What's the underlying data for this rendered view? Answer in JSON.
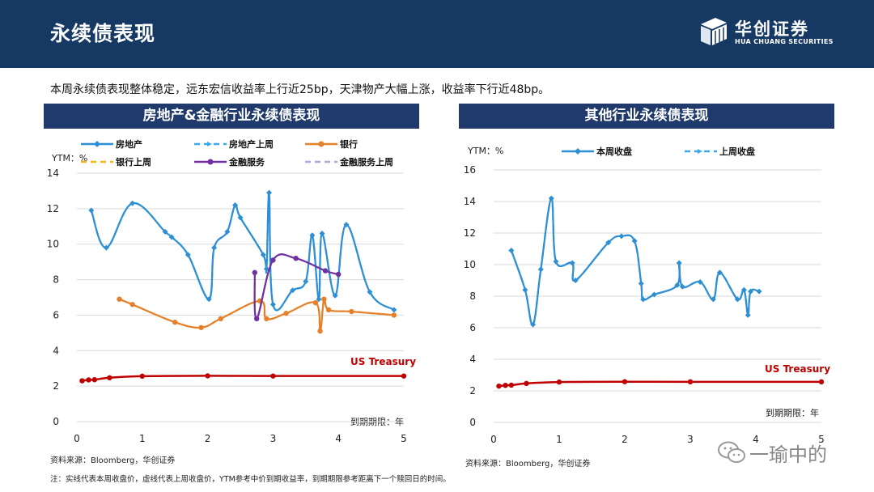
{
  "header": {
    "title": "永续债表现",
    "logo_cn": "华创证券",
    "logo_en": "HUA CHUANG SECURITIES"
  },
  "summary": "本周永续债表现整体稳定，远东宏信收益率上行近25bp，天津物产大幅上涨，收益率下行近48bp。",
  "colors": {
    "header": "#163963",
    "panel": "#1f3a6b",
    "current": "#2e8fd4",
    "last": "#3aa9e8",
    "bank": "#e6802a",
    "bank_last": "#f2b81b",
    "fin": "#7030a0",
    "fin_last": "#b9a3d6",
    "treasury": "#c00000"
  },
  "footer": {
    "source_left": "资料来源：Bloomberg，华创证券",
    "source_right": "资料来源：Bloomberg，华创证券",
    "note": "注：实线代表本周收盘价，虚线代表上周收盘价，YTM参考中价到期收益率，到期期限参考距离下一个赎回日的时间。"
  },
  "watermark": "一瑜中的",
  "chart_data": [
    {
      "type": "line",
      "title": "房地产&金融行业永续债表现",
      "ylabel": "YTM：%",
      "xlabel": "到期期限：年",
      "xlim": [
        0,
        5
      ],
      "ylim": [
        0,
        14
      ],
      "xticks": [
        0,
        1,
        2,
        3,
        4,
        5
      ],
      "yticks": [
        0,
        2,
        4,
        6,
        8,
        10,
        12,
        14
      ],
      "legend": [
        "房地产",
        "房地产上周",
        "银行",
        "银行上周",
        "金融服务",
        "金融服务上周"
      ],
      "series": [
        {
          "name": "房地产",
          "style": "current",
          "color": "#2e8fd4",
          "points": [
            [
              0.22,
              11.9
            ],
            [
              0.45,
              9.8
            ],
            [
              0.85,
              12.3
            ],
            [
              1.35,
              10.7
            ],
            [
              1.45,
              10.4
            ],
            [
              1.7,
              9.4
            ],
            [
              2.02,
              6.9
            ],
            [
              2.1,
              9.8
            ],
            [
              2.3,
              10.7
            ],
            [
              2.42,
              12.2
            ],
            [
              2.5,
              11.5
            ],
            [
              2.85,
              9.4
            ],
            [
              2.9,
              8.6
            ],
            [
              2.94,
              12.9
            ],
            [
              3.0,
              6.6
            ],
            [
              3.3,
              7.4
            ],
            [
              3.5,
              7.9
            ],
            [
              3.6,
              10.5
            ],
            [
              3.7,
              6.9
            ],
            [
              3.75,
              10.6
            ],
            [
              3.95,
              7.1
            ],
            [
              4.12,
              11.1
            ],
            [
              4.48,
              7.3
            ],
            [
              4.85,
              6.3
            ]
          ]
        },
        {
          "name": "房地产上周",
          "style": "last",
          "color": "#3aa9e8",
          "points": [
            [
              0.22,
              11.9
            ],
            [
              0.45,
              9.8
            ],
            [
              0.85,
              12.3
            ],
            [
              1.35,
              10.7
            ],
            [
              1.45,
              10.4
            ],
            [
              1.7,
              9.4
            ],
            [
              2.02,
              6.9
            ],
            [
              2.1,
              9.8
            ],
            [
              2.3,
              10.7
            ],
            [
              2.42,
              12.2
            ],
            [
              2.5,
              11.5
            ],
            [
              2.85,
              9.4
            ],
            [
              2.9,
              8.6
            ],
            [
              2.94,
              12.9
            ],
            [
              3.0,
              6.6
            ],
            [
              3.3,
              7.4
            ],
            [
              3.5,
              7.9
            ],
            [
              3.6,
              10.5
            ],
            [
              3.7,
              6.9
            ],
            [
              3.75,
              10.6
            ],
            [
              3.95,
              7.1
            ],
            [
              4.12,
              11.1
            ],
            [
              4.48,
              7.3
            ],
            [
              4.85,
              6.3
            ]
          ]
        },
        {
          "name": "银行",
          "style": "current",
          "color": "#e6802a",
          "points": [
            [
              0.65,
              6.9
            ],
            [
              0.85,
              6.6
            ],
            [
              1.5,
              5.6
            ],
            [
              1.9,
              5.3
            ],
            [
              2.2,
              5.8
            ],
            [
              2.8,
              6.8
            ],
            [
              2.9,
              5.8
            ],
            [
              3.2,
              6.1
            ],
            [
              3.65,
              6.7
            ],
            [
              3.72,
              5.1
            ],
            [
              3.78,
              6.9
            ],
            [
              3.85,
              6.3
            ],
            [
              4.2,
              6.2
            ],
            [
              4.85,
              6.0
            ]
          ]
        },
        {
          "name": "银行上周",
          "style": "last",
          "color": "#f2b81b",
          "points": [
            [
              0.65,
              6.9
            ],
            [
              0.85,
              6.6
            ],
            [
              1.5,
              5.6
            ],
            [
              1.9,
              5.3
            ],
            [
              2.2,
              5.8
            ],
            [
              2.8,
              6.8
            ],
            [
              2.9,
              5.8
            ],
            [
              3.2,
              6.1
            ],
            [
              3.65,
              6.7
            ],
            [
              3.72,
              5.1
            ],
            [
              3.78,
              6.9
            ],
            [
              3.85,
              6.3
            ],
            [
              4.2,
              6.2
            ],
            [
              4.85,
              6.0
            ]
          ]
        },
        {
          "name": "金融服务",
          "style": "current",
          "color": "#7030a0",
          "points": [
            [
              2.72,
              8.4
            ],
            [
              2.75,
              5.8
            ],
            [
              3.0,
              9.1
            ],
            [
              3.35,
              9.2
            ],
            [
              3.8,
              8.5
            ],
            [
              4.0,
              8.3
            ]
          ]
        },
        {
          "name": "金融服务上周",
          "style": "last",
          "color": "#b9a3d6",
          "points": [
            [
              2.72,
              8.4
            ],
            [
              2.75,
              5.8
            ],
            [
              3.0,
              9.1
            ],
            [
              3.35,
              9.2
            ],
            [
              3.8,
              8.5
            ],
            [
              4.0,
              8.3
            ]
          ]
        },
        {
          "name": "US Treasury",
          "style": "treasury",
          "color": "#c00000",
          "points": [
            [
              0.08,
              2.3
            ],
            [
              0.18,
              2.35
            ],
            [
              0.27,
              2.36
            ],
            [
              0.5,
              2.47
            ],
            [
              1.0,
              2.56
            ],
            [
              2.0,
              2.58
            ],
            [
              3.0,
              2.57
            ],
            [
              5.0,
              2.57
            ]
          ]
        }
      ],
      "annotation": "US Treasury"
    },
    {
      "type": "line",
      "title": "其他行业永续债表现",
      "ylabel": "YTM：%",
      "xlabel": "到期期限：年",
      "xlim": [
        0,
        5
      ],
      "ylim": [
        0,
        16
      ],
      "xticks": [
        0,
        1,
        2,
        3,
        4,
        5
      ],
      "yticks": [
        0,
        2,
        4,
        6,
        8,
        10,
        12,
        14,
        16
      ],
      "legend": [
        "本周收盘",
        "上周收盘"
      ],
      "series": [
        {
          "name": "本周收盘",
          "style": "current",
          "color": "#2e8fd4",
          "points": [
            [
              0.27,
              10.9
            ],
            [
              0.48,
              8.4
            ],
            [
              0.6,
              6.2
            ],
            [
              0.72,
              9.7
            ],
            [
              0.88,
              14.2
            ],
            [
              0.95,
              10.2
            ],
            [
              1.2,
              10.1
            ],
            [
              1.25,
              9.0
            ],
            [
              1.75,
              11.4
            ],
            [
              1.95,
              11.8
            ],
            [
              2.15,
              11.5
            ],
            [
              2.25,
              8.8
            ],
            [
              2.28,
              7.8
            ],
            [
              2.45,
              8.1
            ],
            [
              2.8,
              8.7
            ],
            [
              2.83,
              10.1
            ],
            [
              2.88,
              8.6
            ],
            [
              3.15,
              8.9
            ],
            [
              3.35,
              7.8
            ],
            [
              3.45,
              9.5
            ],
            [
              3.72,
              7.8
            ],
            [
              3.82,
              8.4
            ],
            [
              3.88,
              6.8
            ],
            [
              3.92,
              8.3
            ],
            [
              4.05,
              8.3
            ]
          ]
        },
        {
          "name": "上周收盘",
          "style": "last",
          "color": "#3aa9e8",
          "points": [
            [
              0.27,
              10.9
            ],
            [
              0.48,
              8.4
            ],
            [
              0.6,
              6.2
            ],
            [
              0.72,
              9.7
            ],
            [
              0.88,
              14.2
            ],
            [
              0.95,
              10.2
            ],
            [
              1.2,
              10.1
            ],
            [
              1.25,
              9.0
            ],
            [
              1.75,
              11.4
            ],
            [
              1.95,
              11.8
            ],
            [
              2.15,
              11.5
            ],
            [
              2.25,
              8.8
            ],
            [
              2.28,
              7.8
            ],
            [
              2.45,
              8.1
            ],
            [
              2.8,
              8.7
            ],
            [
              2.83,
              10.1
            ],
            [
              2.88,
              8.6
            ],
            [
              3.15,
              8.9
            ],
            [
              3.35,
              7.8
            ],
            [
              3.45,
              9.5
            ],
            [
              3.72,
              7.8
            ],
            [
              3.82,
              8.4
            ],
            [
              3.88,
              6.8
            ],
            [
              3.92,
              8.3
            ],
            [
              4.05,
              8.3
            ]
          ]
        },
        {
          "name": "US Treasury",
          "style": "treasury",
          "color": "#c00000",
          "points": [
            [
              0.08,
              2.3
            ],
            [
              0.18,
              2.35
            ],
            [
              0.27,
              2.36
            ],
            [
              0.5,
              2.47
            ],
            [
              1.0,
              2.56
            ],
            [
              2.0,
              2.58
            ],
            [
              3.0,
              2.57
            ],
            [
              5.0,
              2.57
            ]
          ]
        }
      ],
      "annotation": "US Treasury"
    }
  ]
}
